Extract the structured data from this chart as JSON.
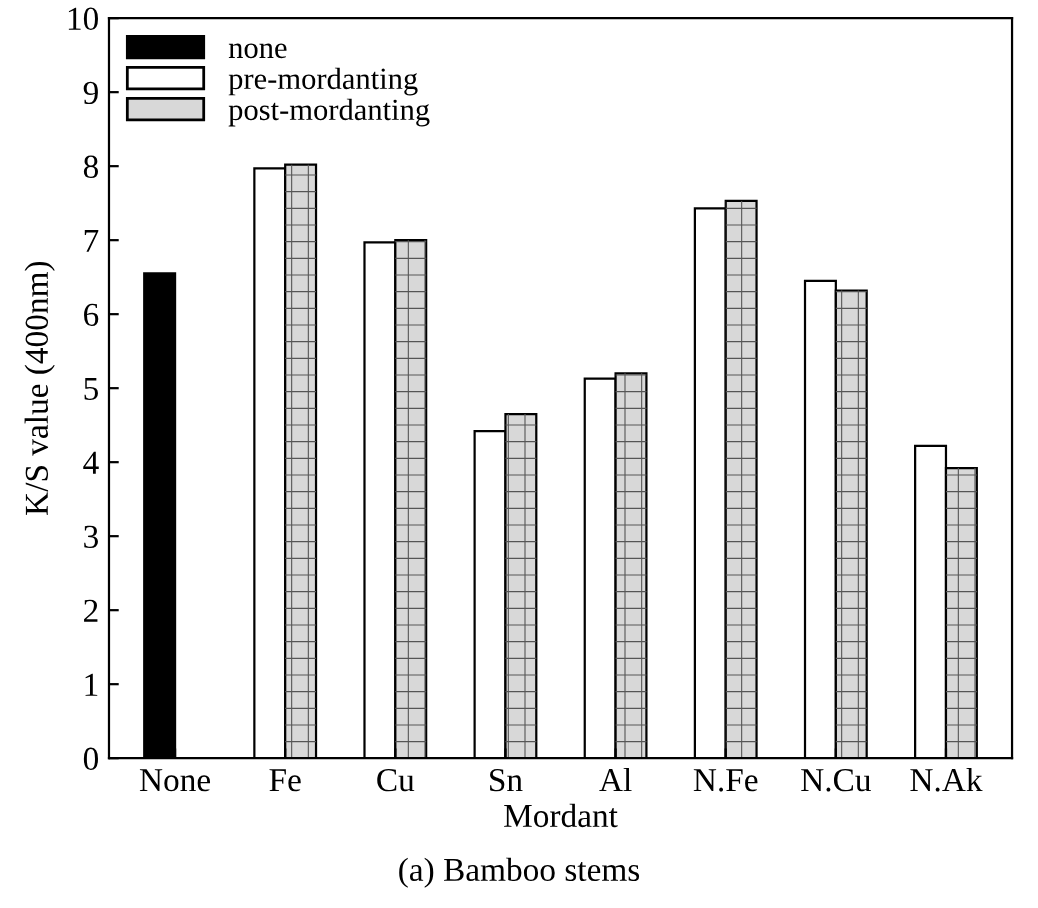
{
  "chart_data": {
    "type": "bar",
    "xlabel": "Mordant",
    "ylabel": "K/S value (400nm)",
    "categories": [
      "None",
      "Fe",
      "Cu",
      "Sn",
      "Al",
      "N.Fe",
      "N.Cu",
      "N.Ak"
    ],
    "series": [
      {
        "name": "none",
        "color": "#000000",
        "values": [
          6.55,
          null,
          null,
          null,
          null,
          null,
          null,
          null
        ]
      },
      {
        "name": "pre-mordanting",
        "color": "#ffffff",
        "values": [
          null,
          7.97,
          6.97,
          4.42,
          5.13,
          7.43,
          6.45,
          4.22
        ]
      },
      {
        "name": "post-mordanting",
        "color": "#d8d8d8",
        "values": [
          null,
          8.02,
          7.0,
          4.65,
          5.2,
          7.53,
          6.32,
          3.92
        ]
      }
    ],
    "ylim": [
      0,
      10
    ],
    "yticks": [
      0,
      1,
      2,
      3,
      4,
      5,
      6,
      7,
      8,
      9,
      10
    ],
    "grid": false,
    "legend": "top left",
    "annotations": [
      "(a) Bamboo stems"
    ]
  }
}
